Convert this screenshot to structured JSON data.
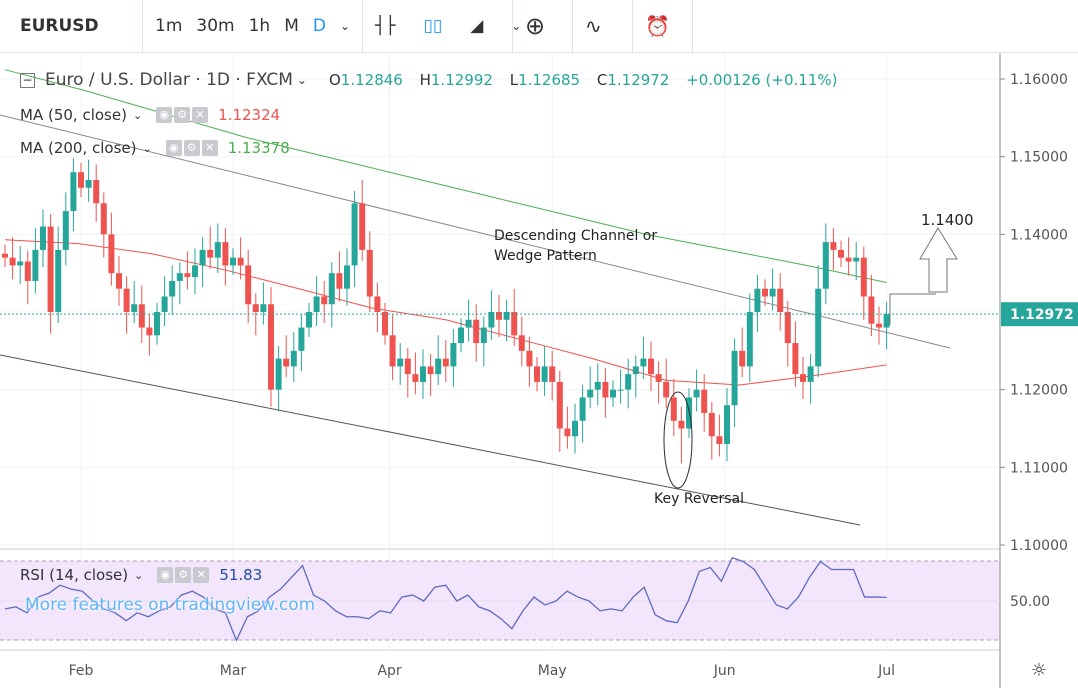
{
  "toolbar": {
    "symbol": "EURUSD",
    "intervals": [
      "1m",
      "30m",
      "1h",
      "M",
      "D"
    ],
    "active_interval": "D"
  },
  "legend": {
    "title": "Euro / U.S. Dollar · 1D · FXCM",
    "o_label": "O",
    "o": "1.12846",
    "h_label": "H",
    "h": "1.12992",
    "l_label": "L",
    "l": "1.12685",
    "c_label": "C",
    "c": "1.12972",
    "change": "+0.00126 (+0.11%)",
    "ma50_label": "MA (50, close)",
    "ma50_value": "1.12324",
    "ma200_label": "MA (200, close)",
    "ma200_value": "1.13378",
    "rsi_label": "RSI (14, close)",
    "rsi_value": "51.83"
  },
  "watermark": "More features on tradingview.com",
  "colors": {
    "up": "#26a69a",
    "down": "#ef5350",
    "ma50": "#ef5350",
    "ma200": "#4caf50",
    "rsi": "#5c6bc0",
    "rsi_bg": "#f3e5fc"
  },
  "chart_data": {
    "type": "candlestick",
    "title": "Euro / U.S. Dollar · 1D · FXCM",
    "ylim": [
      1.1,
      1.16
    ],
    "y_ticks": [
      "1.16000",
      "1.15000",
      "1.14000",
      "1.13000",
      "1.12000",
      "1.11000",
      "1.10000"
    ],
    "y_tick_values": [
      1.16,
      1.15,
      1.14,
      1.13,
      1.12,
      1.11,
      1.1
    ],
    "x_ticks": [
      {
        "label": "Feb",
        "index": 10
      },
      {
        "label": "Mar",
        "index": 30
      },
      {
        "label": "Apr",
        "index": 50.6
      },
      {
        "label": "May",
        "index": 72
      },
      {
        "label": "Jun",
        "index": 94.7
      },
      {
        "label": "Jul",
        "index": 116
      }
    ],
    "first_open": 1.1375,
    "closes": [
      1.137,
      1.136,
      1.1365,
      1.134,
      1.138,
      1.141,
      1.13,
      1.138,
      1.143,
      1.148,
      1.146,
      1.147,
      1.144,
      1.14,
      1.135,
      1.133,
      1.13,
      1.131,
      1.128,
      1.127,
      1.13,
      1.132,
      1.134,
      1.135,
      1.1345,
      1.136,
      1.138,
      1.137,
      1.139,
      1.136,
      1.137,
      1.136,
      1.131,
      1.13,
      1.131,
      1.12,
      1.124,
      1.123,
      1.125,
      1.128,
      1.13,
      1.132,
      1.131,
      1.135,
      1.133,
      1.136,
      1.144,
      1.138,
      1.132,
      1.13,
      1.127,
      1.123,
      1.124,
      1.122,
      1.121,
      1.123,
      1.122,
      1.124,
      1.123,
      1.126,
      1.128,
      1.129,
      1.126,
      1.128,
      1.13,
      1.129,
      1.13,
      1.127,
      1.125,
      1.123,
      1.121,
      1.123,
      1.121,
      1.115,
      1.114,
      1.116,
      1.119,
      1.12,
      1.121,
      1.119,
      1.12,
      1.12,
      1.122,
      1.123,
      1.124,
      1.122,
      1.121,
      1.119,
      1.116,
      1.115,
      1.119,
      1.12,
      1.117,
      1.114,
      1.113,
      1.118,
      1.125,
      1.123,
      1.13,
      1.133,
      1.132,
      1.133,
      1.13,
      1.126,
      1.122,
      1.121,
      1.123,
      1.133,
      1.139,
      1.138,
      1.137,
      1.1365,
      1.137,
      1.132,
      1.1285,
      1.128,
      1.12972
    ],
    "ma50": [
      1.1393,
      1.1388,
      1.1375,
      1.1354,
      1.133,
      1.1305,
      1.129,
      1.1265,
      1.124,
      1.1212,
      1.1206,
      1.1218,
      1.1232
    ],
    "ma200": [
      1.1612,
      1.1585,
      1.1555,
      1.1525,
      1.15,
      1.1475,
      1.145,
      1.1425,
      1.14,
      1.138,
      1.136,
      1.1338
    ],
    "last_price": "1.12972",
    "rsi": {
      "ylim": [
        30,
        70
      ],
      "level_label": "50.00",
      "values": [
        46,
        47,
        44,
        52,
        54,
        58,
        56,
        55,
        50,
        46,
        44,
        40,
        44,
        42,
        45,
        47,
        53,
        55,
        52,
        46,
        44,
        30,
        42,
        45,
        52,
        56,
        62,
        68,
        53,
        50,
        45,
        42,
        42,
        41,
        45,
        44,
        52,
        53,
        50,
        57,
        58,
        50,
        53,
        47,
        45,
        41,
        36,
        45,
        52,
        48,
        50,
        55,
        52,
        50,
        45,
        46,
        45,
        52,
        57,
        43,
        40,
        39,
        50,
        65,
        67,
        60,
        72,
        70,
        66,
        57,
        48,
        46,
        52,
        62,
        70,
        66,
        66,
        66,
        52,
        52,
        51.83
      ]
    },
    "annotations": {
      "channel": [
        "Descending Channel or",
        "Wedge Pattern"
      ],
      "reversal": "Key Reversal",
      "target": "1.1400"
    }
  }
}
